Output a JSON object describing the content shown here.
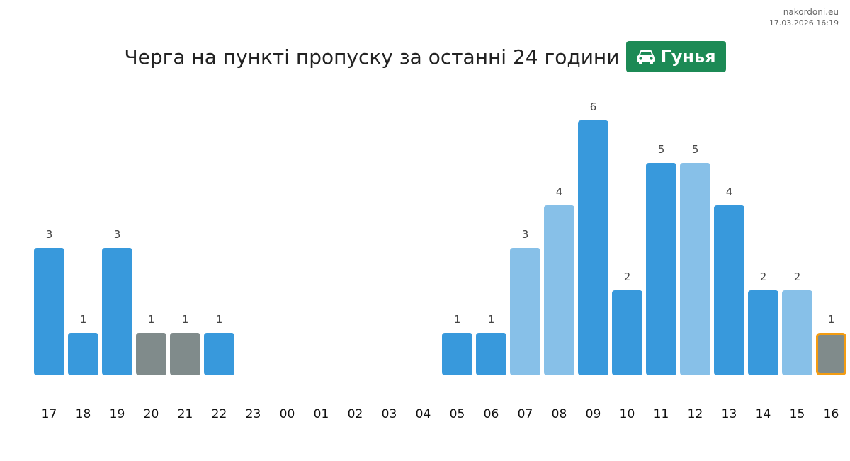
{
  "watermark": {
    "site": "nakordoni.eu",
    "datetime": "17.03.2026 16:19"
  },
  "header": {
    "title": "Черга на пункті пропуску за останні 24 години",
    "checkpoint_name": "Гунья",
    "checkpoint_icon": "car-icon",
    "badge_color": "#1c8a55"
  },
  "colors": {
    "dark_blue": "#3899dc",
    "light_blue": "#87c0e8",
    "gray": "#808b8b",
    "highlight_border": "#f39c12",
    "label": "#444444",
    "tick": "#111111"
  },
  "chart_data": {
    "type": "bar",
    "categories": [
      "17",
      "18",
      "19",
      "20",
      "21",
      "22",
      "23",
      "00",
      "01",
      "02",
      "03",
      "04",
      "05",
      "06",
      "07",
      "08",
      "09",
      "10",
      "11",
      "12",
      "13",
      "14",
      "15",
      "16"
    ],
    "values": [
      3,
      1,
      3,
      1,
      1,
      1,
      0,
      0,
      0,
      0,
      0,
      0,
      1,
      1,
      3,
      4,
      6,
      2,
      5,
      5,
      4,
      2,
      2,
      1
    ],
    "bar_styles": [
      "dark",
      "dark",
      "dark",
      "gray",
      "gray",
      "dark",
      "none",
      "none",
      "none",
      "none",
      "none",
      "none",
      "dark",
      "dark",
      "light",
      "light",
      "dark",
      "dark",
      "dark",
      "light",
      "dark",
      "dark",
      "light",
      "gray"
    ],
    "highlighted_category": "16",
    "ylim": [
      0,
      6
    ],
    "data_labels": true,
    "title": "",
    "xlabel": "",
    "ylabel": ""
  }
}
